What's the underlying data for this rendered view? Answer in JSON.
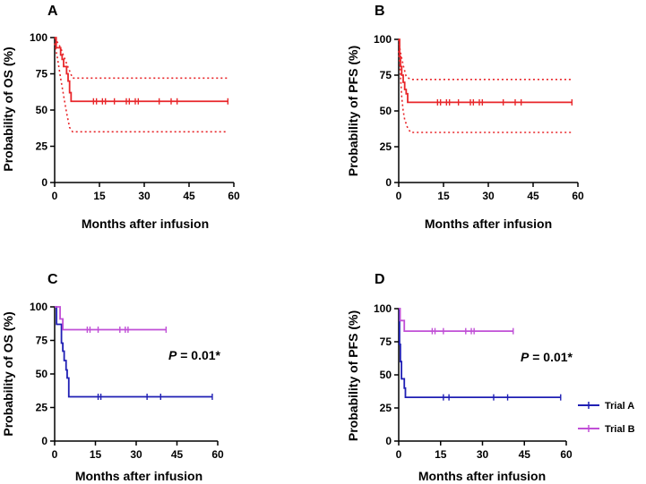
{
  "colors": {
    "red": "#e8262a",
    "blue": "#1f1fb4",
    "purple": "#c04fd6",
    "axis": "#000000"
  },
  "legend": {
    "trial_a": "Trial A",
    "trial_b": "Trial B"
  },
  "chart_data": [
    {
      "panel": "A",
      "type": "line",
      "title": "",
      "xlabel": "Months after infusion",
      "ylabel": "Probability of OS (%)",
      "xlim": [
        0,
        60
      ],
      "ylim": [
        0,
        100
      ],
      "xticks": [
        0,
        15,
        30,
        45,
        60
      ],
      "yticks": [
        0,
        25,
        50,
        75,
        100
      ],
      "series": [
        {
          "name": "OS",
          "color": "#e8262a",
          "style": "solid",
          "steps": [
            [
              0,
              100
            ],
            [
              0.5,
              93
            ],
            [
              2,
              88
            ],
            [
              2.5,
              85
            ],
            [
              3,
              80
            ],
            [
              4,
              75
            ],
            [
              4.5,
              70
            ],
            [
              5,
              62
            ],
            [
              5.5,
              56
            ],
            [
              58,
              56
            ]
          ],
          "censors": [
            [
              13,
              56
            ],
            [
              14,
              56
            ],
            [
              16,
              56
            ],
            [
              17,
              56
            ],
            [
              20,
              56
            ],
            [
              24,
              56
            ],
            [
              25,
              56
            ],
            [
              27,
              56
            ],
            [
              28,
              56
            ],
            [
              35,
              56
            ],
            [
              39,
              56
            ],
            [
              41,
              56
            ],
            [
              58,
              56
            ]
          ]
        },
        {
          "name": "Upper 95% CI",
          "color": "#e8262a",
          "style": "dotted",
          "points": [
            [
              0,
              100
            ],
            [
              2,
              93
            ],
            [
              4,
              82
            ],
            [
              6,
              72
            ],
            [
              58,
              72
            ]
          ]
        },
        {
          "name": "Lower 95% CI",
          "color": "#e8262a",
          "style": "dotted",
          "points": [
            [
              0,
              96
            ],
            [
              1,
              85
            ],
            [
              2,
              72
            ],
            [
              3,
              60
            ],
            [
              4,
              48
            ],
            [
              5,
              38
            ],
            [
              6,
              35
            ],
            [
              58,
              35
            ]
          ]
        }
      ]
    },
    {
      "panel": "B",
      "type": "line",
      "title": "",
      "xlabel": "Months after infusion",
      "ylabel": "Probability of PFS (%)",
      "xlim": [
        0,
        60
      ],
      "ylim": [
        0,
        100
      ],
      "xticks": [
        0,
        15,
        30,
        45,
        60
      ],
      "yticks": [
        0,
        25,
        50,
        75,
        100
      ],
      "series": [
        {
          "name": "PFS",
          "color": "#e8262a",
          "style": "solid",
          "steps": [
            [
              0,
              100
            ],
            [
              0.3,
              88
            ],
            [
              0.6,
              81
            ],
            [
              1,
              75
            ],
            [
              1.5,
              70
            ],
            [
              2,
              65
            ],
            [
              2.5,
              62
            ],
            [
              3,
              56
            ],
            [
              58,
              56
            ]
          ],
          "censors": [
            [
              13,
              56
            ],
            [
              14,
              56
            ],
            [
              16,
              56
            ],
            [
              17,
              56
            ],
            [
              20,
              56
            ],
            [
              24,
              56
            ],
            [
              25,
              56
            ],
            [
              27,
              56
            ],
            [
              28,
              56
            ],
            [
              35,
              56
            ],
            [
              39,
              56
            ],
            [
              41,
              56
            ],
            [
              58,
              56
            ]
          ]
        },
        {
          "name": "Upper 95% CI",
          "color": "#e8262a",
          "style": "dotted",
          "points": [
            [
              0,
              100
            ],
            [
              0.5,
              92
            ],
            [
              1.5,
              82
            ],
            [
              2.5,
              74
            ],
            [
              4,
              72
            ],
            [
              58,
              72
            ]
          ]
        },
        {
          "name": "Lower 95% CI",
          "color": "#e8262a",
          "style": "dotted",
          "points": [
            [
              0,
              92
            ],
            [
              0.5,
              78
            ],
            [
              1,
              60
            ],
            [
              1.5,
              50
            ],
            [
              2,
              44
            ],
            [
              3,
              38
            ],
            [
              4,
              35
            ],
            [
              58,
              35
            ]
          ]
        }
      ]
    },
    {
      "panel": "C",
      "type": "line",
      "title": "",
      "xlabel": "Months after infusion",
      "ylabel": "Probability of OS (%)",
      "xlim": [
        0,
        60
      ],
      "ylim": [
        0,
        100
      ],
      "xticks": [
        0,
        15,
        30,
        45,
        60
      ],
      "yticks": [
        0,
        25,
        50,
        75,
        100
      ],
      "annotation": "P = 0.01*",
      "series": [
        {
          "name": "Trial A",
          "color": "#1f1fb4",
          "style": "solid",
          "steps": [
            [
              0,
              100
            ],
            [
              0.7,
              87
            ],
            [
              2.5,
              73
            ],
            [
              3,
              67
            ],
            [
              3.5,
              60
            ],
            [
              4.2,
              53
            ],
            [
              4.6,
              47
            ],
            [
              5.2,
              33
            ],
            [
              58,
              33
            ]
          ],
          "censors": [
            [
              16,
              33
            ],
            [
              17,
              33
            ],
            [
              34,
              33
            ],
            [
              39,
              33
            ],
            [
              58,
              33
            ]
          ]
        },
        {
          "name": "Trial B",
          "color": "#c04fd6",
          "style": "solid",
          "steps": [
            [
              0,
              100
            ],
            [
              2,
              91
            ],
            [
              3,
              83
            ],
            [
              41,
              83
            ]
          ],
          "censors": [
            [
              12,
              83
            ],
            [
              13,
              83
            ],
            [
              16,
              83
            ],
            [
              24,
              83
            ],
            [
              26,
              83
            ],
            [
              27,
              83
            ],
            [
              41,
              83
            ]
          ]
        }
      ]
    },
    {
      "panel": "D",
      "type": "line",
      "title": "",
      "xlabel": "Months after infusion",
      "ylabel": "Probability of PFS (%)",
      "xlim": [
        0,
        60
      ],
      "ylim": [
        0,
        100
      ],
      "xticks": [
        0,
        15,
        30,
        45,
        60
      ],
      "yticks": [
        0,
        25,
        50,
        75,
        100
      ],
      "annotation": "P = 0.01*",
      "series": [
        {
          "name": "Trial A",
          "color": "#1f1fb4",
          "style": "solid",
          "steps": [
            [
              0,
              100
            ],
            [
              0.3,
              73
            ],
            [
              0.6,
              60
            ],
            [
              1,
              47
            ],
            [
              2,
              40
            ],
            [
              2.4,
              33
            ],
            [
              58,
              33
            ]
          ],
          "censors": [
            [
              16,
              33
            ],
            [
              18,
              33
            ],
            [
              34,
              33
            ],
            [
              39,
              33
            ],
            [
              58,
              33
            ]
          ]
        },
        {
          "name": "Trial B",
          "color": "#c04fd6",
          "style": "solid",
          "steps": [
            [
              0,
              100
            ],
            [
              0.5,
              91
            ],
            [
              2,
              83
            ],
            [
              41,
              83
            ]
          ],
          "censors": [
            [
              12,
              83
            ],
            [
              13,
              83
            ],
            [
              16,
              83
            ],
            [
              24,
              83
            ],
            [
              26,
              83
            ],
            [
              27,
              83
            ],
            [
              41,
              83
            ]
          ]
        }
      ]
    }
  ]
}
